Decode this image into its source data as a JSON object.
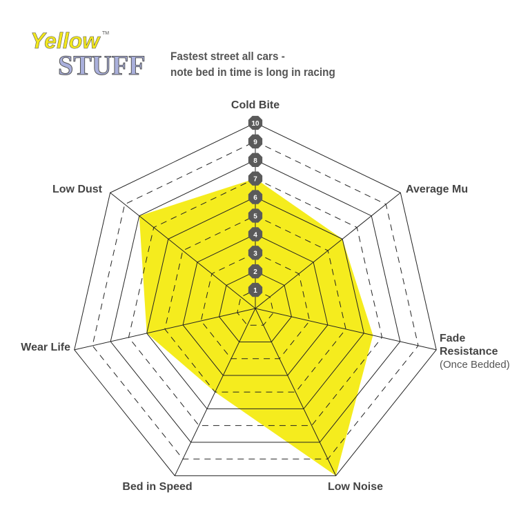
{
  "logo": {
    "line1": "Yellow",
    "line2": "STUFF",
    "tm": "TM"
  },
  "chart_data": {
    "type": "radar",
    "title": "Fastest street all cars -\nnote bed in time is long in racing",
    "title_lines": [
      "Fastest street all cars -",
      "note bed in time is long in racing"
    ],
    "axes": [
      "Cold Bite",
      "Average Mu",
      "Fade Resistance",
      "Low Noise",
      "Bed in Speed",
      "Wear Life",
      "Low Dust"
    ],
    "axis_sublabels": {
      "Fade Resistance": "(Once Bedded)"
    },
    "values": [
      7,
      6,
      6.5,
      10,
      5,
      6,
      8
    ],
    "range": [
      0,
      10
    ],
    "scale_ticks": [
      "1",
      "2",
      "3",
      "4",
      "5",
      "6",
      "7",
      "8",
      "9",
      "10"
    ],
    "fill_color": "#f5ec1e",
    "marker_color": "#5a5a5a"
  }
}
